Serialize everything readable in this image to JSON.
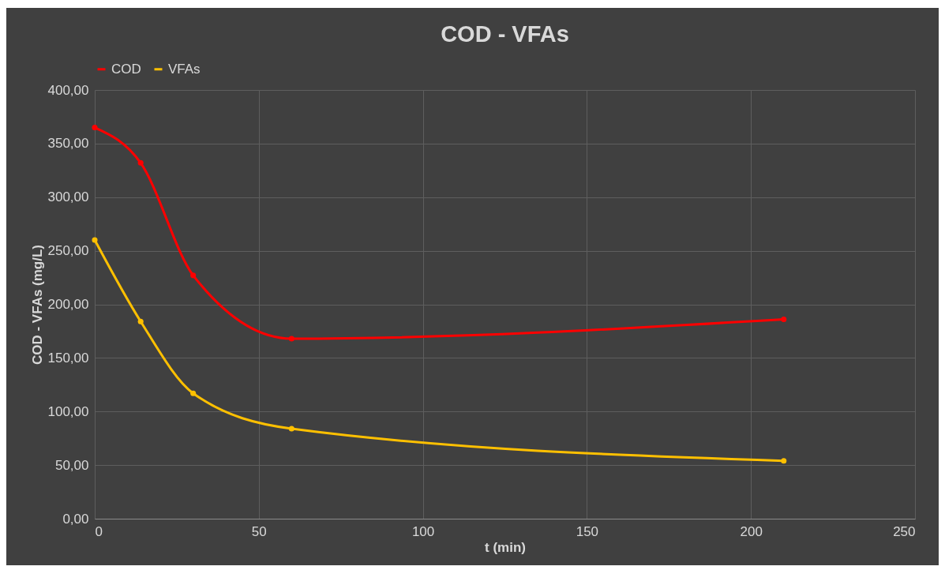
{
  "chart_data": {
    "type": "line",
    "title": "COD - VFAs",
    "xlabel": "t (min)",
    "ylabel": "COD - VFAs (mg/L)",
    "x": [
      0,
      14,
      30,
      60,
      210
    ],
    "series": [
      {
        "name": "COD",
        "color": "#ff0000",
        "values": [
          365,
          332,
          227,
          168,
          186
        ]
      },
      {
        "name": "VFAs",
        "color": "#ffc000",
        "values": [
          260,
          184,
          117,
          84,
          54
        ]
      }
    ],
    "xlim": [
      0,
      250
    ],
    "xticks": [
      0,
      50,
      100,
      150,
      200,
      250
    ],
    "ylim": [
      0,
      400
    ],
    "yticks": [
      {
        "value": 0,
        "label": "0,00"
      },
      {
        "value": 50,
        "label": "50,00"
      },
      {
        "value": 100,
        "label": "100,00"
      },
      {
        "value": 150,
        "label": "150,00"
      },
      {
        "value": 200,
        "label": "200,00"
      },
      {
        "value": 250,
        "label": "250,00"
      },
      {
        "value": 300,
        "label": "300,00"
      },
      {
        "value": 350,
        "label": "350,00"
      },
      {
        "value": 400,
        "label": "400,00"
      }
    ],
    "grid": true,
    "legend": "top",
    "marker": "circle",
    "line_style": "solid"
  }
}
